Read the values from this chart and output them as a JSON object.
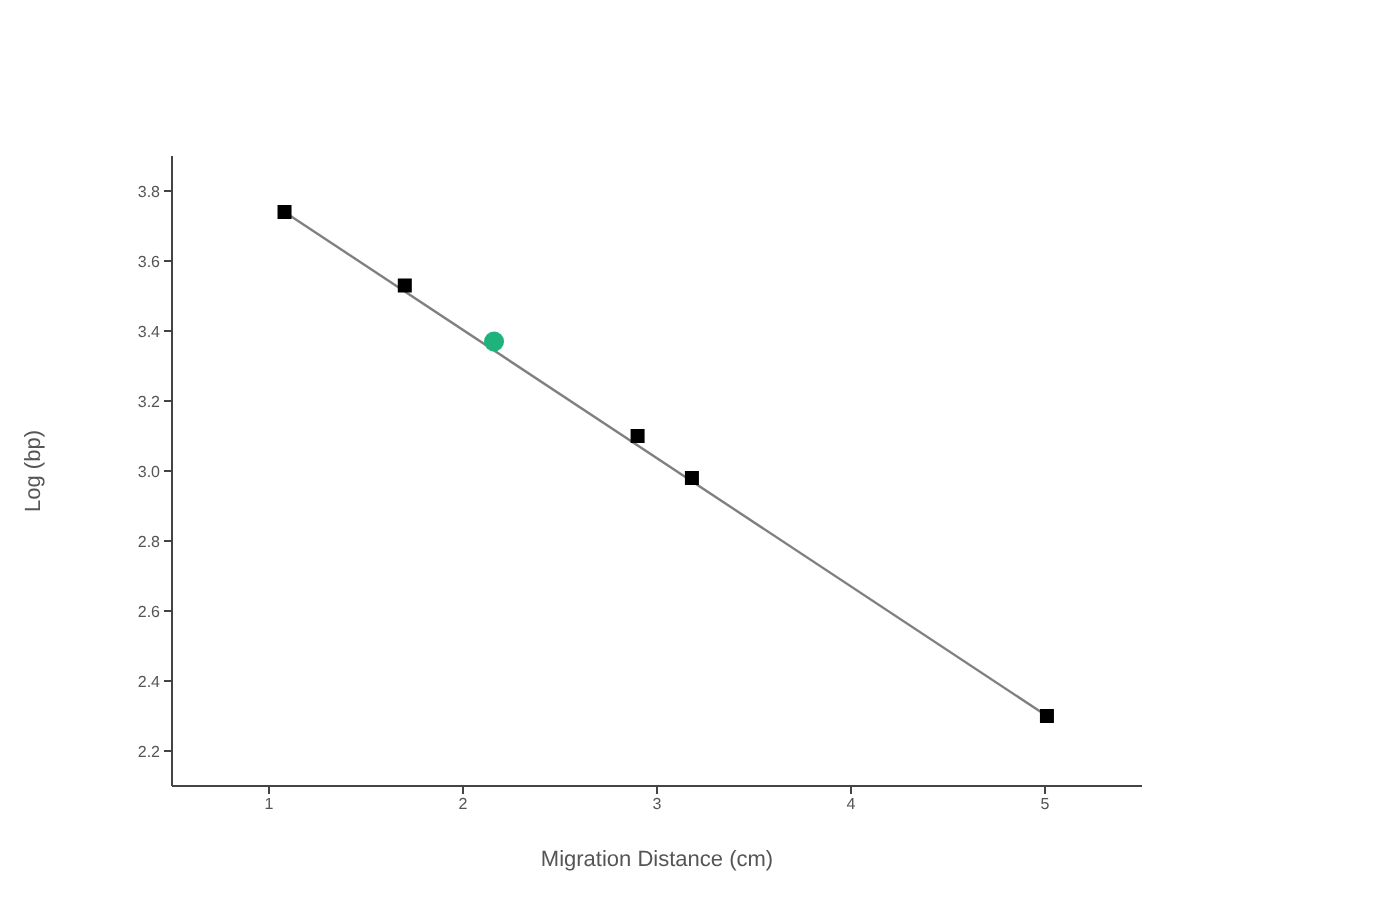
{
  "chart_data": {
    "type": "scatter",
    "xlabel": "Migration Distance (cm)",
    "ylabel": "Log (bp)",
    "xlim": [
      0.5,
      5.5
    ],
    "xticks": [
      1,
      2,
      3,
      4,
      5
    ],
    "ylim": [
      2.1,
      3.9
    ],
    "yticks": [
      2.2,
      2.4,
      2.6,
      2.8,
      {
        "value": 3,
        "label": "3.0"
      },
      3.2,
      3.4,
      3.6,
      3.8
    ],
    "grid": false,
    "legend": false,
    "series": [
      {
        "type": "line",
        "color": "#7f7f7f",
        "x": [
          1.08,
          5.01
        ],
        "values": [
          3.74,
          2.3
        ],
        "marker": "none"
      },
      {
        "color": "#000000",
        "x": [
          1.08,
          1.7,
          2.9,
          3.18,
          5.01
        ],
        "values": [
          3.74,
          3.53,
          3.1,
          2.98,
          2.3
        ],
        "marker": "square"
      },
      {
        "color": "#1db37a",
        "x": [
          2.16
        ],
        "values": [
          3.37
        ],
        "marker": "circle"
      }
    ]
  }
}
